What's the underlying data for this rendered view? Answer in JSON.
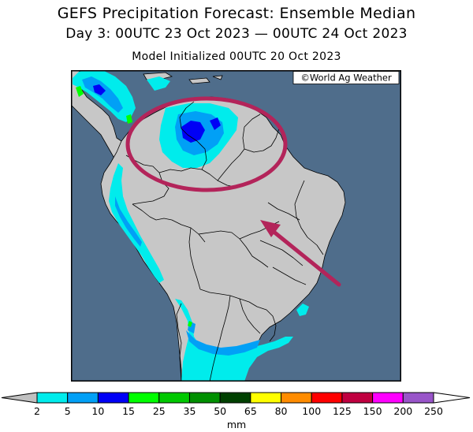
{
  "title": "GEFS Precipitation Forecast: Ensemble Median",
  "subtitle": "Day 3: 00UTC 23 Oct 2023 — 00UTC 24 Oct 2023",
  "init_line": "Model Initialized 00UTC 20 Oct 2023",
  "watermark": "©World Ag Weather",
  "colors": {
    "ocean": "#4f6d8b",
    "land": "#c7c7c7",
    "highlight": "#b3245a"
  },
  "colorbar": {
    "units": "mm",
    "ticks": [
      "2",
      "5",
      "10",
      "15",
      "25",
      "35",
      "50",
      "65",
      "80",
      "100",
      "125",
      "150",
      "200",
      "250"
    ],
    "under_color": "#c0c0c0",
    "over_color": "#ffffff",
    "colors": [
      "#00ecec",
      "#01a0f6",
      "#0000f6",
      "#00ff00",
      "#00c800",
      "#009000",
      "#004000",
      "#ffff00",
      "#ff8c00",
      "#ff0000",
      "#c00040",
      "#ff00ff",
      "#9955c9"
    ]
  }
}
